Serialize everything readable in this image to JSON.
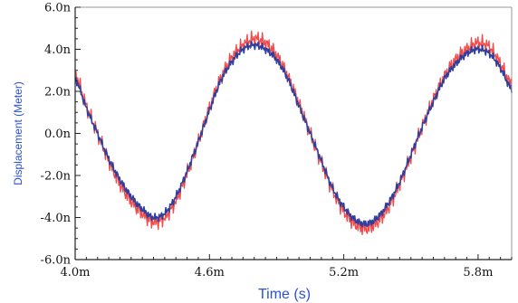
{
  "chart_data": {
    "type": "line",
    "title": "",
    "xlabel": "Time (s)",
    "ylabel": "Displacement (Meter)",
    "xlim": [
      4.0,
      5.95
    ],
    "ylim": [
      -6.0,
      6.0
    ],
    "x_tick_values": [
      4.0,
      4.6,
      5.2,
      5.8
    ],
    "x_tick_labels": [
      "4.0m",
      "4.6m",
      "5.2m",
      "5.8m"
    ],
    "x_tick_unit": "milliseconds",
    "y_tick_values": [
      6,
      4,
      2,
      0,
      -2,
      -4,
      -6
    ],
    "y_tick_labels": [
      "6.0n",
      "4.0n",
      "2.0n",
      "0.0n",
      "-2.0n",
      "-4.0n",
      "-6.0n"
    ],
    "y_tick_unit": "nanometers",
    "grid": false,
    "legend": "none",
    "series": [
      {
        "color": "#f24a4a",
        "x": [
          4.0,
          4.05,
          4.1,
          4.15,
          4.2,
          4.25,
          4.3,
          4.35,
          4.4,
          4.45,
          4.5,
          4.55,
          4.6,
          4.65,
          4.7,
          4.75,
          4.8,
          4.85,
          4.9,
          4.95,
          5.0,
          5.05,
          5.1,
          5.15,
          5.2,
          5.25,
          5.3,
          5.35,
          5.4,
          5.45,
          5.5,
          5.55,
          5.6,
          5.65,
          5.7,
          5.75,
          5.8,
          5.85,
          5.9,
          5.95
        ],
        "y": [
          2.8,
          1.3,
          0.0,
          -1.3,
          -2.4,
          -3.2,
          -3.8,
          -4.2,
          -4.0,
          -3.2,
          -1.9,
          -0.4,
          1.2,
          2.6,
          3.6,
          4.2,
          4.5,
          4.3,
          3.7,
          2.7,
          1.4,
          0.0,
          -1.4,
          -2.7,
          -3.7,
          -4.3,
          -4.5,
          -4.2,
          -3.5,
          -2.4,
          -1.1,
          0.3,
          1.6,
          2.7,
          3.5,
          4.0,
          4.3,
          4.1,
          3.3,
          2.3
        ]
      },
      {
        "color": "#2f3f9e",
        "x": [
          4.0,
          4.05,
          4.1,
          4.15,
          4.2,
          4.25,
          4.3,
          4.35,
          4.4,
          4.45,
          4.5,
          4.55,
          4.6,
          4.65,
          4.7,
          4.75,
          4.8,
          4.85,
          4.9,
          4.95,
          5.0,
          5.05,
          5.1,
          5.15,
          5.2,
          5.25,
          5.3,
          5.35,
          5.4,
          5.45,
          5.5,
          5.55,
          5.6,
          5.65,
          5.7,
          5.75,
          5.8,
          5.85,
          5.9,
          5.95
        ],
        "y": [
          2.6,
          1.2,
          0.0,
          -1.2,
          -2.2,
          -3.0,
          -3.6,
          -4.0,
          -3.8,
          -3.0,
          -1.8,
          -0.4,
          1.1,
          2.5,
          3.4,
          4.0,
          4.2,
          4.0,
          3.5,
          2.6,
          1.3,
          0.0,
          -1.3,
          -2.6,
          -3.5,
          -4.1,
          -4.3,
          -4.0,
          -3.3,
          -2.3,
          -1.0,
          0.3,
          1.5,
          2.6,
          3.3,
          3.8,
          4.0,
          3.8,
          3.1,
          2.1
        ]
      }
    ],
    "colors": {
      "axis": "#222222",
      "axis_title": "#2b4fd6",
      "tick_label": "#111111"
    }
  }
}
